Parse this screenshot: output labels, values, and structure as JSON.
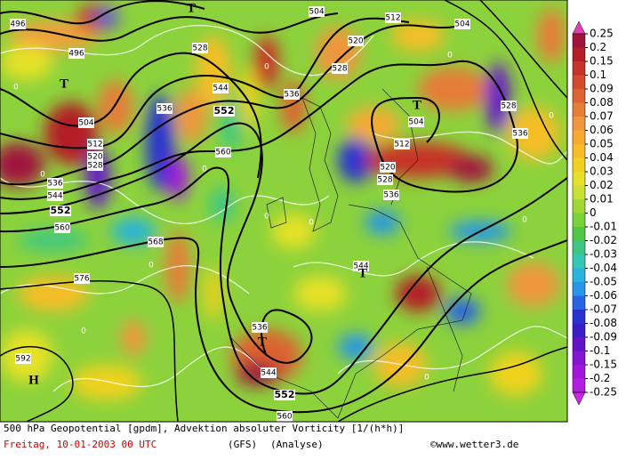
{
  "legend": {
    "levels": [
      "0.25",
      "0.2",
      "0.15",
      "0.1",
      "0.09",
      "0.08",
      "0.07",
      "0.06",
      "0.05",
      "0.04",
      "0.03",
      "0.02",
      "0.01",
      "0",
      "-0.01",
      "-0.02",
      "-0.03",
      "-0.04",
      "-0.05",
      "-0.06",
      "-0.07",
      "-0.08",
      "-0.09",
      "-0.1",
      "-0.15",
      "-0.2",
      "-0.25"
    ],
    "colors": [
      "#e040b0",
      "#a0143c",
      "#b41e28",
      "#c83228",
      "#d24b2d",
      "#dc6432",
      "#e67d37",
      "#f0963c",
      "#f5aa32",
      "#f5be28",
      "#f0d21e",
      "#e6e128",
      "#c8e132",
      "#a0d732",
      "#78d23c",
      "#50c846",
      "#3cc882",
      "#32c8b4",
      "#28b4dc",
      "#2896e6",
      "#2864e6",
      "#2832d2",
      "#3c1ec8",
      "#6414c8",
      "#8214d2",
      "#a014dc",
      "#b41ee0",
      "#c828e0"
    ]
  },
  "map": {
    "contour_labels": [
      "496",
      "496",
      "504",
      "512",
      "504",
      "520",
      "528",
      "528",
      "544",
      "536",
      "536",
      "552",
      "504",
      "512",
      "520",
      "528",
      "536",
      "544",
      "552",
      "560",
      "568",
      "576",
      "592",
      "560",
      "504",
      "512",
      "520",
      "528",
      "536",
      "528",
      "536",
      "536",
      "544",
      "552",
      "560",
      "544"
    ],
    "centers": [
      "T",
      "T",
      "T",
      "T",
      "T",
      "H"
    ],
    "zero_labels": [
      "0",
      "0",
      "0",
      "0",
      "0",
      "0",
      "0",
      "0",
      "0",
      "0",
      "0",
      "0"
    ]
  },
  "footer": {
    "description": "500 hPa Geopotential [gpdm], Advektion absoluter Vorticity [1/(h*h)]",
    "date": "Freitag, 10-01-2003  00 UTC",
    "model": "(GFS)",
    "run": "(Analyse)",
    "credit": "©www.wetter3.de"
  }
}
